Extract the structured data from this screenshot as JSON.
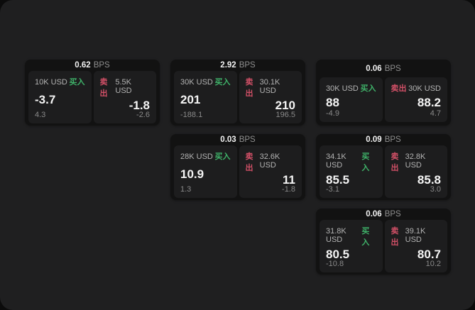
{
  "labels": {
    "bps_unit": "BPS",
    "buy_label": "买入",
    "sell_label": "卖出"
  },
  "colors": {
    "backdrop": "#0b0b0b",
    "page_bg": "#1f1f20",
    "card_bg": "#121212",
    "panel_bg": "#1d1d1e",
    "buy_green": "#3fb269",
    "sell_red": "#d25067",
    "value_white": "#f5f5f5",
    "muted_gray": "#8a8a8a"
  },
  "cards": [
    {
      "bps": "0.62",
      "buy": {
        "amount": "10K USD",
        "big": "-3.7",
        "small": "4.3"
      },
      "sell": {
        "amount": "5.5K USD",
        "big": "-1.8",
        "small": "-2.6"
      }
    },
    {
      "bps": "2.92",
      "buy": {
        "amount": "30K USD",
        "big": "201",
        "small": "-188.1"
      },
      "sell": {
        "amount": "30.1K USD",
        "big": "210",
        "small": "196.5"
      }
    },
    {
      "bps": "0.06",
      "buy": {
        "amount": "30K USD",
        "big": "88",
        "small": "-4.9"
      },
      "sell": {
        "amount": "30K USD",
        "big": "88.2",
        "small": "4.7"
      }
    },
    {
      "bps": "0.03",
      "buy": {
        "amount": "28K USD",
        "big": "10.9",
        "small": "1.3"
      },
      "sell": {
        "amount": "32.6K USD",
        "big": "11",
        "small": "-1.8"
      }
    },
    {
      "bps": "0.09",
      "buy": {
        "amount": "34.1K USD",
        "big": "85.5",
        "small": "-3.1"
      },
      "sell": {
        "amount": "32.8K USD",
        "big": "85.8",
        "small": "3.0"
      }
    },
    {
      "bps": "0.06",
      "buy": {
        "amount": "31.8K USD",
        "big": "80.5",
        "small": "-10.8"
      },
      "sell": {
        "amount": "39.1K USD",
        "big": "80.7",
        "small": "10.2"
      }
    }
  ]
}
